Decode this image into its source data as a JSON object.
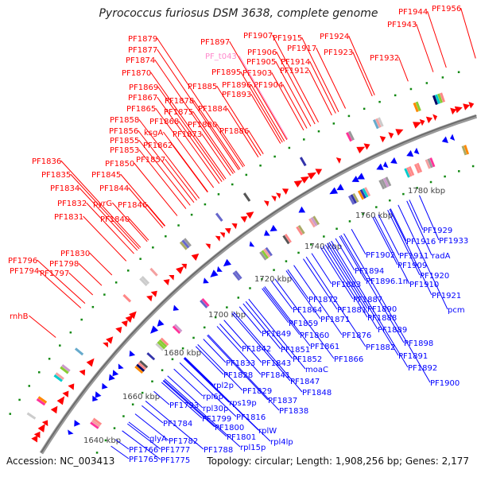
{
  "title": "Pyrococcus furiosus DSM 3638, complete genome",
  "footer": {
    "accession": "Accession: NC_003413",
    "topology": "Topology: circular; Length: 1,908,256 bp; Genes: 2,177"
  },
  "colors": {
    "forward": "#ff0000",
    "reverse": "#0000ff",
    "rna": "#ff88cc",
    "backbone": "#888888",
    "tick": "#118811"
  },
  "ruler": [
    "1640 kbp",
    "1660 kbp",
    "1680 kbp",
    "1700 kbp",
    "1720 kbp",
    "1740 kbp",
    "1760 kbp",
    "1780 kbp"
  ],
  "forward_labels": [
    "PF1879",
    "PF1877",
    "PF1874",
    "PF1870",
    "PF1869",
    "PF1867",
    "PF1865",
    "PF1858",
    "PF1856",
    "PF1855",
    "PF1853",
    "PF1850",
    "PF1845",
    "PF1844",
    "PF1846",
    "PF1832",
    "PF1831",
    "PF1836",
    "PF1835",
    "PF1834",
    "pyrG",
    "PF1840",
    "PF1878",
    "PF1875",
    "PF1868",
    "ksgA",
    "PF1862",
    "PF1857",
    "PF1873",
    "PF1885",
    "PF1884",
    "PF1880",
    "PF1886",
    "PF1897",
    "PF1895",
    "PF1896",
    "PF1893",
    "PF1907",
    "PF1906",
    "PF1905",
    "PF1903",
    "PF1904",
    "PF1915",
    "PF1917",
    "PF1914",
    "PF1912",
    "PF1924",
    "PF1923",
    "PF1932",
    "PF1943",
    "PF1944",
    "PF1956",
    "PF1830",
    "PF1798",
    "PF1796",
    "PF1794",
    "PF1797",
    "rnhB"
  ],
  "rna_labels": [
    "PF_t043"
  ],
  "reverse_labels": [
    "PF1929",
    "PF1916",
    "PF1933",
    "PF1911",
    "radA",
    "PF1902",
    "PF1909",
    "PF1894",
    "PF1920",
    "PF1896.1n",
    "PF1910",
    "PF1883",
    "PF1921",
    "pcm",
    "PF1872",
    "PF1887",
    "PF1881",
    "PF1890",
    "PF1864",
    "PF1888",
    "PF1871",
    "PF1859",
    "PF1889",
    "PF1876",
    "PF1860",
    "PF1898",
    "PF1849",
    "PF1851",
    "PF1861",
    "PF1882",
    "PF1842",
    "PF1891",
    "PF1852",
    "PF1866",
    "PF1833",
    "PF1843",
    "PF1892",
    "moaC",
    "PF1900",
    "PF1828",
    "PF1841",
    "PF1847",
    "rpl2p",
    "PF1829",
    "PF1848",
    "PF1837",
    "rpl6p",
    "rps19p",
    "rpl30p",
    "PF1838",
    "PF1793",
    "PF1816",
    "PF1799",
    "PF1784",
    "PF1800",
    "rplW",
    "PF1801",
    "rpl4lp",
    "glyA",
    "PF1782",
    "rpl15p",
    "PF1788",
    "PF1766",
    "PF1777",
    "PF1765",
    "PF1775"
  ]
}
